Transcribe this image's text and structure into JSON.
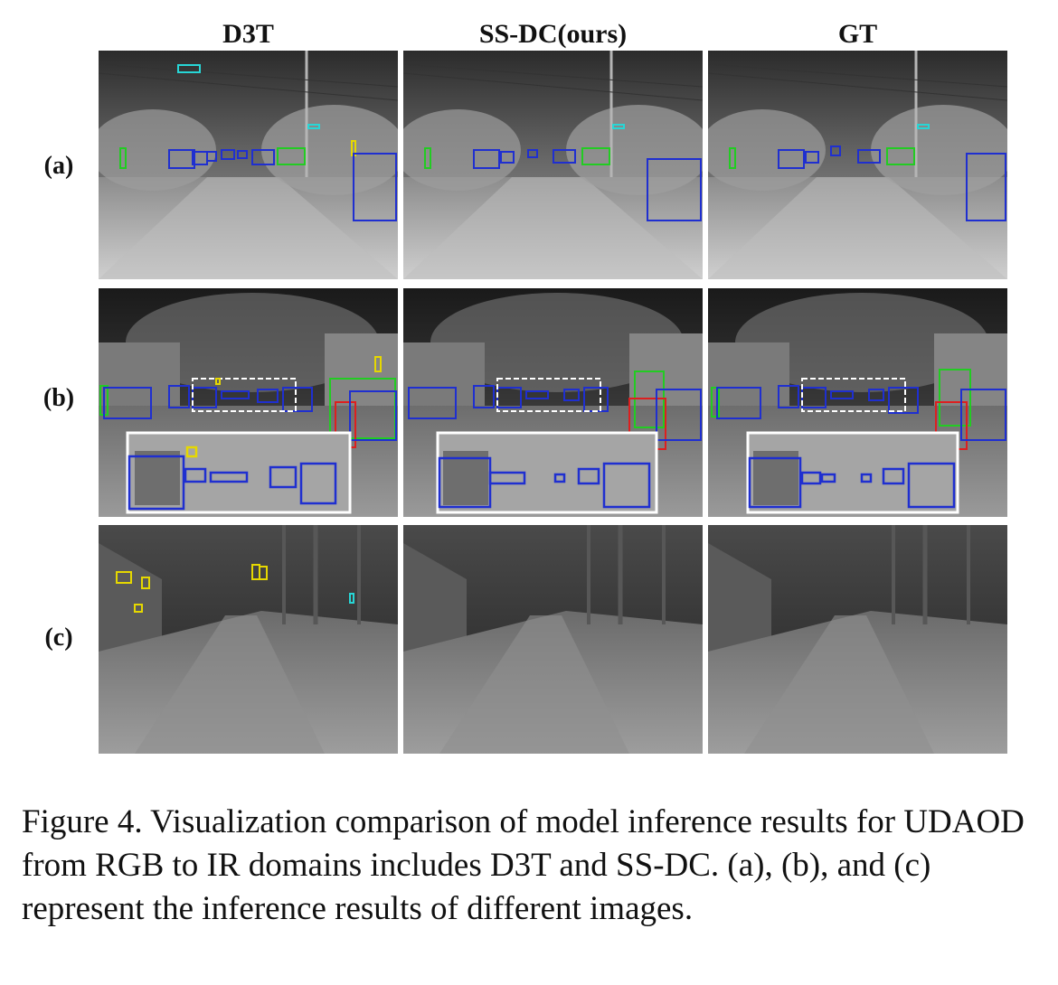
{
  "columns": [
    "D3T",
    "SS-DC(ours)",
    "GT"
  ],
  "rows": [
    "(a)",
    "(b)",
    "(c)"
  ],
  "caption": "Figure 4. Visualization comparison of model inference results for UDAOD from RGB to IR domains includes D3T and SS-DC. (a), (b), and (c) represent the inference results of different images.",
  "box_colors": {
    "car": "#1f2fd0",
    "person": "#22cc22",
    "bicycle": "#dd1f1f",
    "light": "#e6d800",
    "sign": "#27d6d6",
    "zoom": "#ffffff"
  }
}
